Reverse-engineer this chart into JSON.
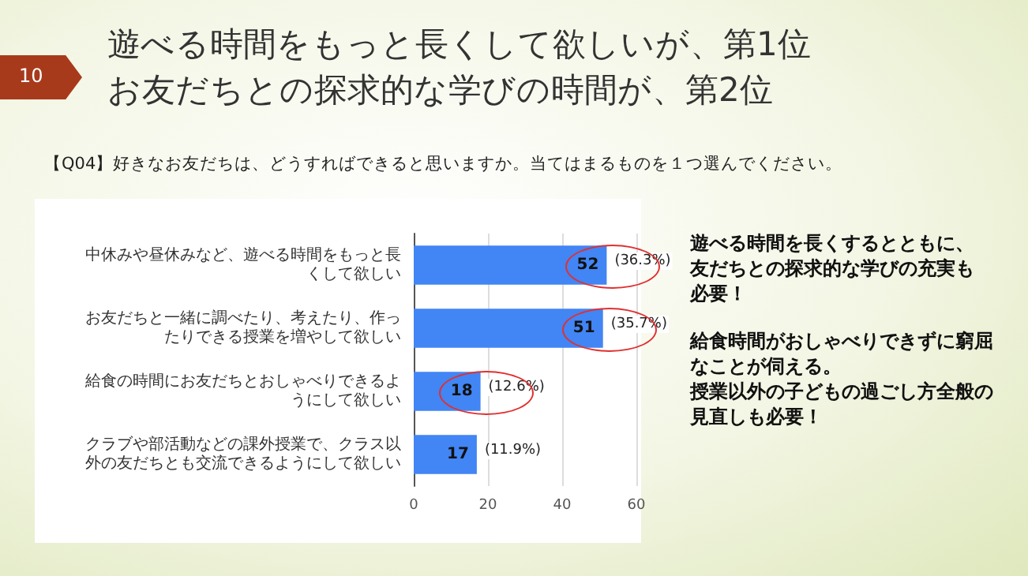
{
  "chart_data": {
    "type": "bar",
    "orientation": "horizontal",
    "title": "遊べる時間をもっと長くして欲しいが、第1位お友だちとの探求的な学びの時間が、第2位",
    "subtitle": "【Q04】好きなお友だちは、どうすればできると思いますか。当てはまるものを１つ選んでください。",
    "categories": [
      "中休みや昼休みなど、遊べる時間をもっと長くして欲しい",
      "お友だちと一緒に調べたり、考えたり、作ったりできる授業を増やして欲しい",
      "給食の時間にお友だちとおしゃべりできるようにして欲しい",
      "クラブや部活動などの課外授業で、クラス以外の友だちとも交流できるようにして欲しい"
    ],
    "values": [
      52,
      51,
      18,
      17
    ],
    "color": "#4285f4",
    "data_labels": true,
    "xlim": [
      0,
      60
    ],
    "xticks": [
      0,
      20,
      40,
      60
    ],
    "grid": "x",
    "annotations": [
      "10",
      "遊べる時間を長くするとともに、友だちとの探求的な学びの充実も必要！",
      "給食時間がおしゃべりできずに窮屈なことが伺える。",
      "授業以外の子どもの過ごし方全般の見直しも必要！",
      {
        "text": "(36.3%)",
        "x": 52,
        "y": "中休みや昼休みなど、遊べる時間をもっと長くして欲しい"
      },
      {
        "text": "(35.7%)",
        "x": 51,
        "y": "お友だちと一緒に調べたり、考えたり、作ったりできる授業を増やして欲しい"
      },
      {
        "text": "(12.6%)",
        "x": 18,
        "y": "給食の時間にお友だちとおしゃべりできるようにして欲しい"
      },
      {
        "text": "(11.9%)",
        "x": 17,
        "y": "クラブや部活動などの課外授業で、クラス以外の友だちとも交流できるようにして欲しい"
      }
    ]
  }
}
